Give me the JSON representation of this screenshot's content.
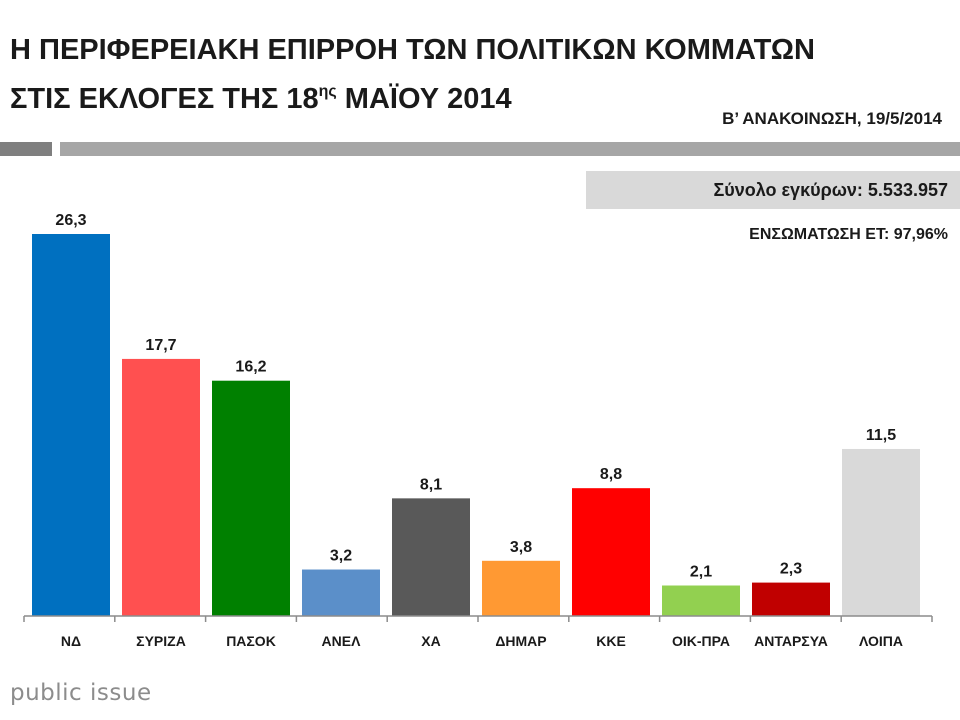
{
  "header": {
    "title_line1": "Η ΠΕΡΙΦΕΡΕΙΑΚΗ ΕΠΙΡΡΟΗ ΤΩΝ ΠΟΛΙΤΙΚΩΝ ΚΟΜΜΑΤΩΝ",
    "title_line2_pre": "ΣΤΙΣ ΕΚΛΟΓΕΣ ΤΗΣ 18",
    "title_line2_sup": "ης",
    "title_line2_post": " ΜΑΪΟΥ 2014",
    "subtitle": "Β’ ΑΝΑΚΟΙΝΩΣΗ, 19/5/2014"
  },
  "info": {
    "total_valid": "Σύνολο εγκύρων: 5.533.957",
    "coverage": "ΕΝΣΩΜΑΤΩΣΗ ΕΤ: 97,96%"
  },
  "brand": "public issue",
  "chart_data": {
    "type": "bar",
    "title": "Η ΠΕΡΙΦΕΡΕΙΑΚΗ ΕΠΙΡΡΟΗ ΤΩΝ ΠΟΛΙΤΙΚΩΝ ΚΟΜΜΑΤΩΝ ΣΤΙΣ ΕΚΛΟΓΕΣ ΤΗΣ 18ης ΜΑΪΟΥ 2014",
    "categories": [
      "ΝΔ",
      "ΣΥΡΙΖΑ",
      "ΠΑΣΟΚ",
      "ΑΝΕΛ",
      "ΧΑ",
      "ΔΗΜΑΡ",
      "ΚΚΕ",
      "ΟΙΚ-ΠΡΑ",
      "ΑΝΤΑΡΣΥΑ",
      "ΛΟΙΠΑ"
    ],
    "values": [
      26.3,
      17.7,
      16.2,
      3.2,
      8.1,
      3.8,
      8.8,
      2.1,
      2.3,
      11.5
    ],
    "value_labels": [
      "26,3",
      "17,7",
      "16,2",
      "3,2",
      "8,1",
      "3,8",
      "8,8",
      "2,1",
      "2,3",
      "11,5"
    ],
    "colors": [
      "#0070c0",
      "#ff5050",
      "#008000",
      "#5b8fc9",
      "#595959",
      "#ff9933",
      "#ff0000",
      "#92d050",
      "#c00000",
      "#d9d9d9"
    ],
    "ylim": [
      0,
      26.3
    ],
    "grid": false,
    "legend": "none"
  }
}
